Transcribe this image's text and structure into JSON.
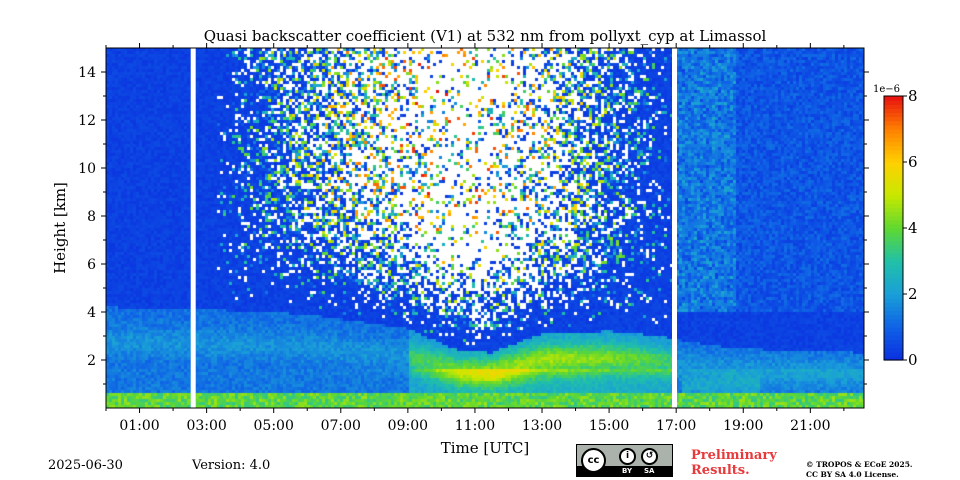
{
  "chart_data": {
    "type": "heatmap",
    "title": "Quasi backscatter coefficient (V1) at 532 nm from pollyxt_cyp at Limassol",
    "xlabel": "Time [UTC]",
    "ylabel": "Height [km]",
    "x_unit": "hours UTC",
    "xlim": [
      0.0,
      22.6
    ],
    "ylim": [
      0.0,
      15.0
    ],
    "x_ticks": [
      {
        "value": 1,
        "label": "01:00"
      },
      {
        "value": 3,
        "label": "03:00"
      },
      {
        "value": 5,
        "label": "05:00"
      },
      {
        "value": 7,
        "label": "07:00"
      },
      {
        "value": 9,
        "label": "09:00"
      },
      {
        "value": 11,
        "label": "11:00"
      },
      {
        "value": 13,
        "label": "13:00"
      },
      {
        "value": 15,
        "label": "15:00"
      },
      {
        "value": 17,
        "label": "17:00"
      },
      {
        "value": 19,
        "label": "19:00"
      },
      {
        "value": 21,
        "label": "21:00"
      }
    ],
    "y_ticks": [
      {
        "value": 2,
        "label": "2"
      },
      {
        "value": 4,
        "label": "4"
      },
      {
        "value": 6,
        "label": "6"
      },
      {
        "value": 8,
        "label": "8"
      },
      {
        "value": 10,
        "label": "10"
      },
      {
        "value": 12,
        "label": "12"
      },
      {
        "value": 14,
        "label": "14"
      }
    ],
    "colorbar": {
      "min": 0,
      "max": 8,
      "offset_label": "1e−6",
      "ticks": [
        {
          "value": 0,
          "label": "0"
        },
        {
          "value": 2,
          "label": "2"
        },
        {
          "value": 4,
          "label": "4"
        },
        {
          "value": 6,
          "label": "6"
        },
        {
          "value": 8,
          "label": "8"
        }
      ],
      "colors": [
        "#0a2fe0",
        "#0f62e6",
        "#1a9fd8",
        "#20c0a8",
        "#5fd830",
        "#c8e800",
        "#ffd000",
        "#ff8000",
        "#e81010"
      ]
    },
    "data_gaps_hours": [
      2.6,
      16.95
    ],
    "features": {
      "boundary_layer_top_km": [
        [
          0.0,
          4.2
        ],
        [
          3.0,
          4.1
        ],
        [
          6.0,
          3.9
        ],
        [
          9.0,
          3.3
        ],
        [
          10.5,
          2.4
        ],
        [
          11.5,
          2.3
        ],
        [
          13.0,
          3.1
        ],
        [
          15.0,
          3.2
        ],
        [
          16.5,
          3.0
        ],
        [
          18.0,
          2.6
        ],
        [
          20.0,
          2.4
        ],
        [
          22.6,
          2.3
        ]
      ],
      "surface_layer_km": 0.6,
      "aerosol_max_value": 8
    }
  },
  "footer": {
    "date": "2025-06-30",
    "version": "Version: 4.0",
    "license_badge": {
      "cc": "cc",
      "by": "BY",
      "sa": "SA",
      "icon_names": [
        "cc-icon",
        "attribution-icon",
        "share-alike-icon"
      ]
    },
    "preliminary_line1": "Preliminary",
    "preliminary_line2": "Results.",
    "copyright_line1": "© TROPOS & ECoE 2025.",
    "copyright_line2": "CC BY SA 4.0 License."
  }
}
